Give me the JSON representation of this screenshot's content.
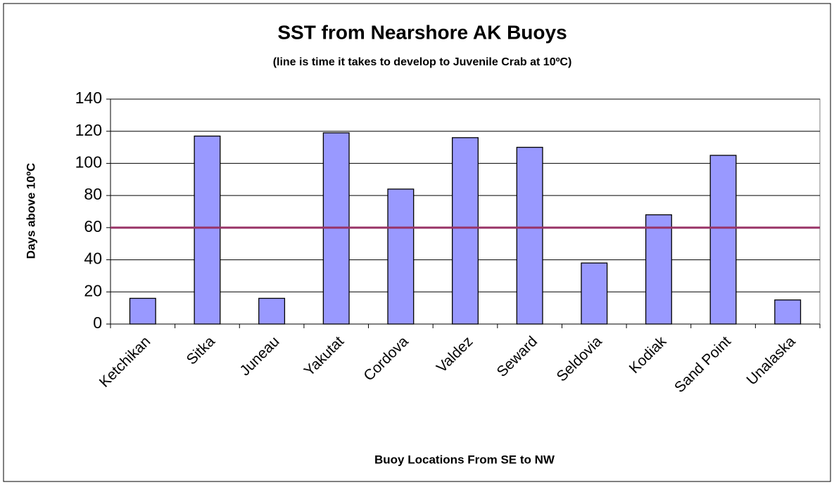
{
  "chart_data": {
    "type": "bar",
    "title": "SST from Nearshore AK Buoys",
    "subtitle": "(line is time it takes to develop to Juvenile Crab at 10ºC)",
    "x_label": "Buoy Locations From SE to NW",
    "y_label": "Days above 10ºC",
    "categories": [
      "Ketchikan",
      "Sitka",
      "Juneau",
      "Yakutat",
      "Cordova",
      "Valdez",
      "Seward",
      "Seldovia",
      "Kodiak",
      "Sand Point",
      "Unalaska"
    ],
    "values": [
      16,
      117,
      16,
      119,
      84,
      116,
      110,
      38,
      68,
      105,
      15
    ],
    "color": "#9999ff",
    "reference_line": 60,
    "reference_color": "#993366",
    "ylim": [
      0,
      140
    ],
    "yticks": [
      0,
      20,
      40,
      60,
      80,
      100,
      120,
      140
    ],
    "grid": true
  }
}
